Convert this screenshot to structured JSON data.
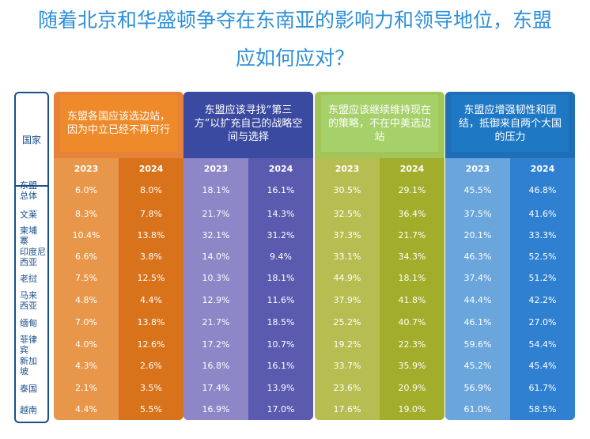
{
  "title": {
    "line1": "随着北京和华盛顿争夺在东南亚的影响力和领导地位，东盟",
    "line2": "应如何应对？"
  },
  "country_header": "国家",
  "countries": [
    {
      "label": [
        "东盟",
        "总体"
      ]
    },
    {
      "label": [
        "文莱"
      ]
    },
    {
      "label": [
        "柬埔",
        "寨"
      ]
    },
    {
      "label": [
        "印度尼",
        "西亚"
      ]
    },
    {
      "label": [
        "老挝"
      ]
    },
    {
      "label": [
        "马来",
        "西亚"
      ]
    },
    {
      "label": [
        "缅甸"
      ]
    },
    {
      "label": [
        "菲律",
        "宾"
      ]
    },
    {
      "label": [
        "新加",
        "坡"
      ]
    },
    {
      "label": [
        "泰国"
      ]
    },
    {
      "label": [
        "越南"
      ]
    }
  ],
  "colors": {
    "title": "#2e8fd8",
    "frame": "#1a4f8c",
    "opt1_head": "#ee8a2a",
    "opt1_a": "#e8974a",
    "opt1_b": "#d9731b",
    "opt2_head": "#3a4aa0",
    "opt2_a": "#8d86c7",
    "opt2_b": "#5a5aae",
    "opt3_head": "#a6d06a",
    "opt3_a": "#b8bd52",
    "opt3_b": "#a1ad2b",
    "opt4_head": "#1f78c4",
    "opt4_a": "#6aa6dc",
    "opt4_b": "#2f80d0"
  },
  "chart_data": {
    "type": "table",
    "years": [
      "2023",
      "2024"
    ],
    "rows": [
      "东盟总体",
      "文莱",
      "柬埔寨",
      "印度尼西亚",
      "老挝",
      "马来西亚",
      "缅甸",
      "菲律宾",
      "新加坡",
      "泰国",
      "越南"
    ],
    "series": [
      {
        "name": "东盟各国应该选边站，因为中立已经不再可行",
        "values_2023": [
          "6.0%",
          "8.3%",
          "10.4%",
          "6.6%",
          "7.5%",
          "4.8%",
          "7.0%",
          "4.0%",
          "4.3%",
          "2.1%",
          "4.4%"
        ],
        "values_2024": [
          "8.0%",
          "7.8%",
          "13.8%",
          "3.8%",
          "12.5%",
          "4.4%",
          "13.8%",
          "12.6%",
          "2.6%",
          "3.5%",
          "5.5%"
        ]
      },
      {
        "name": "东盟应该寻找“第三方”以扩充自己的战略空间与选择",
        "values_2023": [
          "18.1%",
          "21.7%",
          "32.1%",
          "14.0%",
          "10.3%",
          "12.9%",
          "21.7%",
          "17.2%",
          "16.8%",
          "17.4%",
          "16.9%"
        ],
        "values_2024": [
          "16.1%",
          "14.3%",
          "31.2%",
          "9.4%",
          "18.1%",
          "11.6%",
          "18.5%",
          "10.7%",
          "16.1%",
          "13.9%",
          "17.0%"
        ]
      },
      {
        "name": "东盟应该继续维持现在的策略，不在中美选边站",
        "values_2023": [
          "30.5%",
          "32.5%",
          "37.3%",
          "33.1%",
          "44.9%",
          "37.9%",
          "25.2%",
          "19.2%",
          "33.7%",
          "23.6%",
          "17.6%"
        ],
        "values_2024": [
          "29.1%",
          "36.4%",
          "21.7%",
          "34.3%",
          "18.1%",
          "41.8%",
          "40.7%",
          "22.3%",
          "35.9%",
          "20.9%",
          "19.0%"
        ]
      },
      {
        "name": "东盟应增强韧性和团结，抵御来自两个大国的压力",
        "values_2023": [
          "45.5%",
          "37.5%",
          "20.1%",
          "46.3%",
          "37.4%",
          "44.4%",
          "46.1%",
          "59.6%",
          "45.2%",
          "56.9%",
          "61.0%"
        ],
        "values_2024": [
          "46.8%",
          "41.6%",
          "33.3%",
          "52.5%",
          "51.2%",
          "42.2%",
          "27.0%",
          "54.4%",
          "45.4%",
          "61.7%",
          "58.5%"
        ]
      }
    ]
  }
}
